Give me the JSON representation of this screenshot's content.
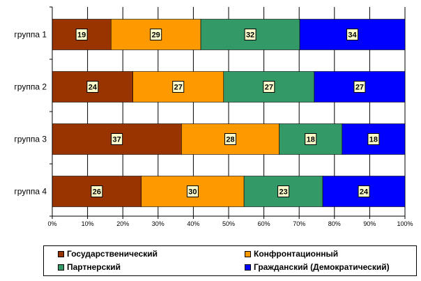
{
  "chart_data": {
    "type": "bar",
    "orientation": "horizontal",
    "stacked": "percent",
    "categories": [
      "группа 1",
      "группа 2",
      "группа 3",
      "группа 4"
    ],
    "series": [
      {
        "name": "Государственический",
        "values": [
          19,
          24,
          37,
          26
        ],
        "color": "#993300"
      },
      {
        "name": "Конфронтационный",
        "values": [
          29,
          27,
          28,
          30
        ],
        "color": "#FF9900"
      },
      {
        "name": "Партнерский",
        "values": [
          32,
          27,
          18,
          23
        ],
        "color": "#339966"
      },
      {
        "name": "Гражданский (Демократический)",
        "values": [
          34,
          27,
          18,
          24
        ],
        "color": "#0000FF"
      }
    ],
    "x_ticks": [
      "0%",
      "10%",
      "20%",
      "30%",
      "40%",
      "50%",
      "60%",
      "70%",
      "80%",
      "90%",
      "100%"
    ],
    "xlim": [
      0,
      100
    ],
    "grid": true,
    "legend_position": "bottom"
  }
}
